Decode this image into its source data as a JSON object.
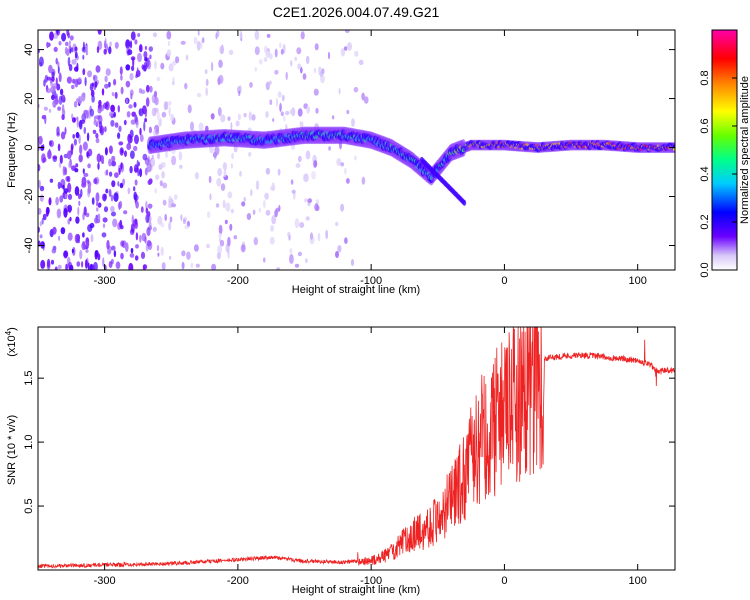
{
  "title": "C2E1.2026.004.07.49.G21",
  "chart_data": [
    {
      "type": "heatmap",
      "xlabel": "Height of straight line (km)",
      "ylabel": "Frequency (Hz)",
      "xlim": [
        -350,
        128
      ],
      "ylim": [
        -50,
        48
      ],
      "xticks": [
        -300,
        -200,
        -100,
        0,
        100
      ],
      "yticks": [
        -40,
        -20,
        0,
        20,
        40
      ],
      "xtick_labels": [
        "-300",
        "-200",
        "-100",
        "0",
        "100"
      ],
      "ytick_labels": [
        "-40",
        "-20",
        "0",
        "20",
        "40"
      ],
      "colorbar": {
        "label": "Normalized spectral amplitude",
        "range": [
          0,
          1
        ],
        "ticks": [
          0.0,
          0.2,
          0.4,
          0.6,
          0.8
        ],
        "tick_labels": [
          "0.0",
          "0.2",
          "0.4",
          "0.6",
          "0.8"
        ],
        "colormap": [
          "#ffffff",
          "#6a00ff",
          "#0000ff",
          "#00ffff",
          "#00ff00",
          "#ffff00",
          "#ff8000",
          "#ff0000",
          "#ff00aa"
        ]
      },
      "main_band": [
        {
          "x": -265,
          "y": 1,
          "amp": 0.35
        },
        {
          "x": -240,
          "y": 3,
          "amp": 0.4
        },
        {
          "x": -210,
          "y": 4,
          "amp": 0.45
        },
        {
          "x": -180,
          "y": 3,
          "amp": 0.4
        },
        {
          "x": -150,
          "y": 5,
          "amp": 0.45
        },
        {
          "x": -120,
          "y": 5,
          "amp": 0.45
        },
        {
          "x": -100,
          "y": 3,
          "amp": 0.45
        },
        {
          "x": -85,
          "y": 0,
          "amp": 0.45
        },
        {
          "x": -70,
          "y": -5,
          "amp": 0.45
        },
        {
          "x": -55,
          "y": -12,
          "amp": 0.4
        },
        {
          "x": -40,
          "y": -2,
          "amp": 0.5
        },
        {
          "x": -25,
          "y": 1,
          "amp": 0.7
        },
        {
          "x": 0,
          "y": 1,
          "amp": 0.8
        },
        {
          "x": 25,
          "y": 0,
          "amp": 0.75
        },
        {
          "x": 50,
          "y": 1,
          "amp": 0.8
        },
        {
          "x": 75,
          "y": 1,
          "amp": 0.85
        },
        {
          "x": 100,
          "y": 0,
          "amp": 0.85
        },
        {
          "x": 128,
          "y": 0,
          "amp": 0.8
        }
      ]
    },
    {
      "type": "line",
      "xlabel": "Height of straight line (km)",
      "ylabel": "SNR (10 * v/v)",
      "y_multiplier": "(x10",
      "y_multiplier_exp": "4",
      "xlim": [
        -350,
        128
      ],
      "ylim": [
        0,
        1.9
      ],
      "xticks": [
        -300,
        -200,
        -100,
        0,
        100
      ],
      "yticks": [
        0.5,
        1.0,
        1.5
      ],
      "xtick_labels": [
        "-300",
        "-200",
        "-100",
        "0",
        "100"
      ],
      "ytick_labels": [
        "0.5",
        "1.0",
        "1.5"
      ],
      "color": "#ee2222",
      "series": [
        {
          "x": [
            -350,
            -300,
            -250,
            -200,
            -175,
            -150,
            -120,
            -100,
            -90,
            -80,
            -70,
            -60,
            -50,
            -40,
            -30,
            -20,
            -10,
            0,
            10,
            20,
            30,
            40,
            60,
            80,
            100,
            110,
            115,
            128
          ],
          "values": [
            0.03,
            0.04,
            0.05,
            0.08,
            0.1,
            0.07,
            0.06,
            0.08,
            0.12,
            0.2,
            0.3,
            0.35,
            0.45,
            0.6,
            0.8,
            1.1,
            1.25,
            1.35,
            1.5,
            1.6,
            1.65,
            1.67,
            1.68,
            1.66,
            1.64,
            1.6,
            1.55,
            1.57
          ]
        }
      ]
    }
  ]
}
